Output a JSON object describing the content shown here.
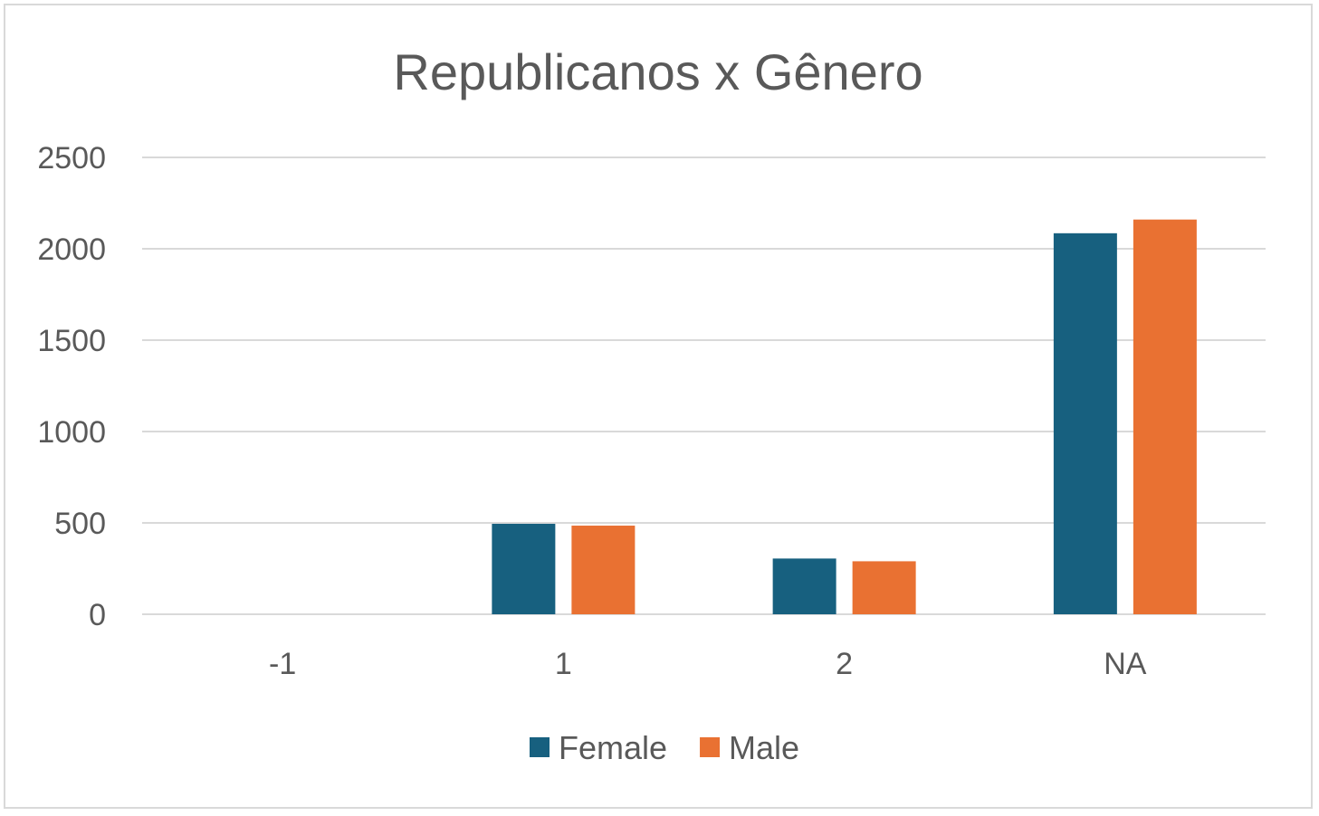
{
  "chart_data": {
    "type": "bar",
    "title": "Republicanos x Gênero",
    "xlabel": "",
    "ylabel": "",
    "categories": [
      "-1",
      "1",
      "2",
      "NA"
    ],
    "series": [
      {
        "name": "Female",
        "color": "#17607f",
        "values": [
          0,
          495,
          305,
          2085
        ]
      },
      {
        "name": "Male",
        "color": "#e97132",
        "values": [
          0,
          485,
          290,
          2160
        ]
      }
    ],
    "ylim": [
      0,
      2500
    ],
    "yticks": [
      "0",
      "500",
      "1000",
      "1500",
      "2000",
      "2500"
    ],
    "grid": true,
    "legend_position": "bottom"
  },
  "colors": {
    "gridline": "#d9d9d9",
    "text": "#595959",
    "border": "#d9d9d9"
  }
}
